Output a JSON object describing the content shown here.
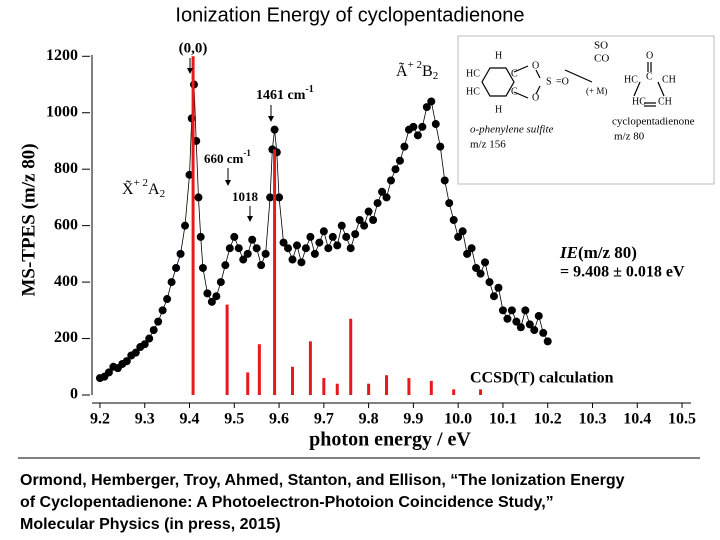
{
  "chart_data": {
    "type": "line",
    "title": "Ionization Energy of cyclopentadienone",
    "xlabel": "photon energy / eV",
    "ylabel": "MS-TPES (m/z 80)",
    "xlim": [
      9.18,
      10.52
    ],
    "ylim": [
      0,
      1240
    ],
    "xticks": [
      9.2,
      9.3,
      9.4,
      9.5,
      9.6,
      9.7,
      9.8,
      9.9,
      {
        "value": 10,
        "label": "10.0"
      },
      10.1,
      10.2,
      10.3,
      10.4,
      10.5
    ],
    "yticks": [
      0,
      200,
      400,
      600,
      800,
      1000,
      1200
    ],
    "grid": false,
    "series": [
      {
        "mode": "markers+lines",
        "color": "#000000",
        "x": [
          9.2,
          9.21,
          9.22,
          9.23,
          9.24,
          9.25,
          9.26,
          9.27,
          9.28,
          9.29,
          9.3,
          9.31,
          9.32,
          9.33,
          9.34,
          9.35,
          9.36,
          9.37,
          9.38,
          9.39,
          9.4,
          9.405,
          9.41,
          9.415,
          9.42,
          9.425,
          9.43,
          9.44,
          9.45,
          9.46,
          9.47,
          9.48,
          9.49,
          9.5,
          9.51,
          9.52,
          9.53,
          9.54,
          9.55,
          9.56,
          9.57,
          9.58,
          9.585,
          9.59,
          9.595,
          9.6,
          9.61,
          9.62,
          9.63,
          9.64,
          9.65,
          9.66,
          9.67,
          9.68,
          9.69,
          9.7,
          9.71,
          9.72,
          9.73,
          9.74,
          9.75,
          9.76,
          9.77,
          9.78,
          9.79,
          9.8,
          9.81,
          9.82,
          9.83,
          9.84,
          9.85,
          9.86,
          9.87,
          9.88,
          9.89,
          9.9,
          9.91,
          9.92,
          9.93,
          9.94,
          9.95,
          9.96,
          9.97,
          9.98,
          9.99,
          10.0,
          10.01,
          10.02,
          10.03,
          10.04,
          10.05,
          10.06,
          10.07,
          10.08,
          10.09,
          10.1,
          10.11,
          10.12,
          10.13,
          10.14,
          10.15,
          10.16,
          10.17,
          10.18,
          10.19,
          10.2
        ],
        "values": [
          60,
          65,
          80,
          100,
          95,
          110,
          120,
          140,
          150,
          170,
          180,
          200,
          230,
          260,
          300,
          340,
          400,
          450,
          500,
          600,
          780,
          980,
          1100,
          900,
          700,
          560,
          450,
          360,
          330,
          350,
          400,
          460,
          520,
          560,
          520,
          480,
          500,
          550,
          520,
          460,
          500,
          700,
          870,
          940,
          860,
          700,
          540,
          520,
          480,
          530,
          470,
          520,
          560,
          500,
          540,
          580,
          520,
          560,
          530,
          600,
          560,
          520,
          570,
          620,
          600,
          650,
          620,
          680,
          720,
          700,
          760,
          800,
          830,
          880,
          940,
          950,
          920,
          950,
          1020,
          1040,
          960,
          880,
          760,
          680,
          620,
          560,
          580,
          500,
          520,
          450,
          430,
          470,
          400,
          350,
          380,
          300,
          270,
          300,
          260,
          240,
          300,
          250,
          230,
          280,
          220,
          190
        ]
      },
      {
        "name": "CCSD(T) calculation",
        "mode": "sticks",
        "color": "#e8191c",
        "x": [
          9.408,
          9.484,
          9.53,
          9.556,
          9.59,
          9.63,
          9.67,
          9.7,
          9.73,
          9.76,
          9.8,
          9.84,
          9.89,
          9.94,
          9.99,
          10.05
        ],
        "values": [
          1200,
          320,
          80,
          180,
          870,
          100,
          190,
          60,
          40,
          270,
          40,
          70,
          60,
          50,
          20,
          20
        ]
      }
    ],
    "annotations": {
      "origin": "(0,0)",
      "band1461": {
        "text": "1461 cm",
        "sup": "-1"
      },
      "band660": {
        "text": "660 cm",
        "sup": "-1"
      },
      "band1018": "1018",
      "x_state": {
        "symbol": "X̃",
        "sup": "+ 2",
        "term": "A",
        "sub": "2"
      },
      "a_state": {
        "symbol": "Ã",
        "sup": "+ 2",
        "term": "B",
        "sub": "2"
      },
      "ie_label": {
        "symbol": "IE",
        "text": "(m/z 80)"
      },
      "ie_value": "= 9.408 ± 0.018 eV"
    },
    "inset": {
      "reactant_name": "o-phenylene sulfite",
      "reactant_mz": "m/z 156",
      "products": [
        "SO",
        "CO"
      ],
      "third_body": "(+ M)",
      "product_name": "cyclopentadienone",
      "product_mz": "m/z 80",
      "reactant_atoms": [
        "H",
        "HC",
        "C",
        "O",
        "S",
        "=O",
        "HC",
        "C",
        "O",
        "H"
      ],
      "product_atoms": [
        "O",
        "C",
        "HC",
        "CH",
        "HC",
        "CH"
      ]
    }
  },
  "citation": [
    "Ormond, Hemberger, Troy, Ahmed, Stanton, and Ellison, “The Ionization Energy",
    "of Cyclopentadienone: A Photoelectron-Photoion Coincidence Study,”",
    "Molecular Physics (in press, 2015)"
  ]
}
